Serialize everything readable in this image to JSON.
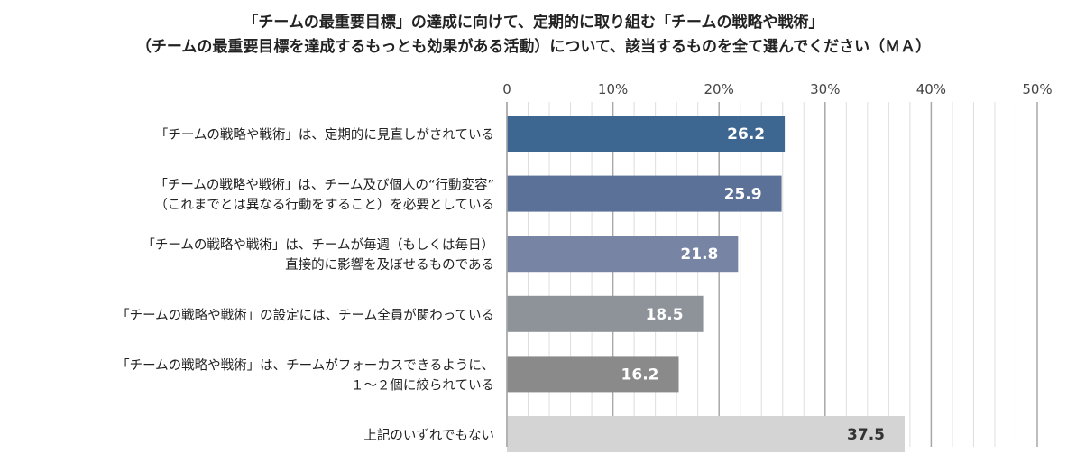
{
  "chart_data": {
    "type": "bar",
    "orientation": "horizontal",
    "title": [
      "「チームの最重要目標」の達成に向けて、定期的に取り組む「チームの戦略や戦術」",
      "（チームの最重要目標を達成するもっとも効果がある活動）について、該当するものを全て選んでください（ＭＡ）"
    ],
    "categories": [
      [
        "「チームの戦略や戦術」は、定期的に見直しがされている"
      ],
      [
        "「チームの戦略や戦術」は、チーム及び個人の“行動変容”",
        "（これまでとは異なる行動をすること）を必要としている"
      ],
      [
        "「チームの戦略や戦術」は、チームが毎週（もしくは毎日）",
        "直接的に影響を及ぼせるものである"
      ],
      [
        "「チームの戦略や戦術」の設定には、チーム全員が関わっている"
      ],
      [
        "「チームの戦略や戦術」は、チームがフォーカスできるように、",
        "１〜２個に絞られている"
      ],
      [
        "上記のいずれでもない"
      ]
    ],
    "values": [
      26.2,
      25.9,
      21.8,
      18.5,
      16.2,
      37.5
    ],
    "value_labels": [
      "26.2",
      "25.9",
      "21.8",
      "18.5",
      "16.2",
      "37.5"
    ],
    "bar_colors": [
      "#3d6691",
      "#5b7198",
      "#7884a3",
      "#8e9299",
      "#8a8a8a",
      "#d4d4d4"
    ],
    "value_label_colors": [
      "#ffffff",
      "#ffffff",
      "#ffffff",
      "#ffffff",
      "#ffffff",
      "#333333"
    ],
    "xlim": [
      0,
      50
    ],
    "x_ticks": [
      0,
      10,
      20,
      30,
      40,
      50
    ],
    "x_tick_labels": [
      "0",
      "10%",
      "20%",
      "30%",
      "40%",
      "50%"
    ],
    "x_axis_position": "top",
    "grid": true
  }
}
